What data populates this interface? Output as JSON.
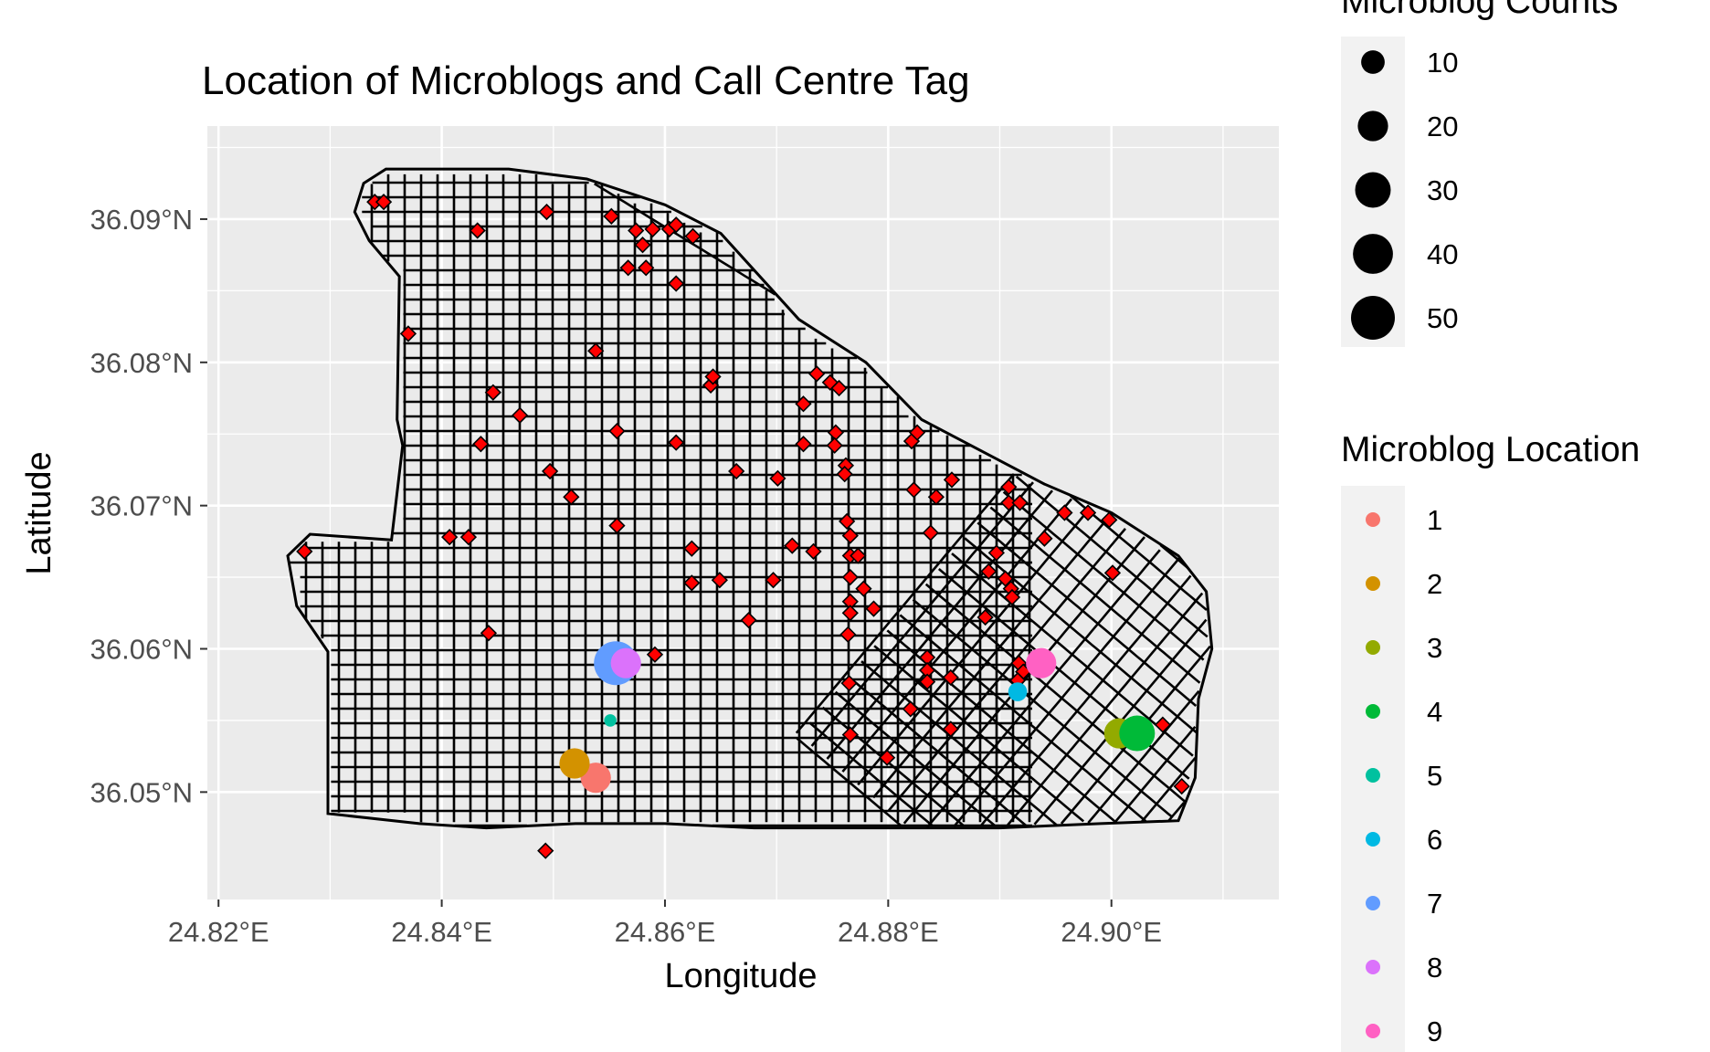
{
  "chart_data": {
    "type": "scatter",
    "title": "Location of Microblogs and Call Centre Tag",
    "xlabel": "Longitude",
    "ylabel": "Latitude",
    "xlim": [
      24.819,
      24.915
    ],
    "ylim": [
      36.0425,
      36.0965
    ],
    "x_ticks": [
      {
        "value": 24.82,
        "label": "24.82°E"
      },
      {
        "value": 24.84,
        "label": "24.84°E"
      },
      {
        "value": 24.86,
        "label": "24.86°E"
      },
      {
        "value": 24.88,
        "label": "24.88°E"
      },
      {
        "value": 24.9,
        "label": "24.90°E"
      }
    ],
    "y_ticks": [
      {
        "value": 36.05,
        "label": "36.05°N"
      },
      {
        "value": 36.06,
        "label": "36.06°N"
      },
      {
        "value": 36.07,
        "label": "36.07°N"
      },
      {
        "value": 36.08,
        "label": "36.08°N"
      },
      {
        "value": 36.09,
        "label": "36.09°N"
      }
    ],
    "grid": true,
    "background": "#ebebeb",
    "road_color": "#000000",
    "call_centre_marker": {
      "shape": "diamond",
      "fill": "#ff0000",
      "stroke": "#000000"
    },
    "call_centre_points": [
      [
        24.834,
        36.0912
      ],
      [
        24.8348,
        36.0912
      ],
      [
        24.8432,
        36.0892
      ],
      [
        24.8494,
        36.0905
      ],
      [
        24.8552,
        36.0902
      ],
      [
        24.8574,
        36.0892
      ],
      [
        24.858,
        36.0882
      ],
      [
        24.8589,
        36.0893
      ],
      [
        24.8604,
        36.0893
      ],
      [
        24.861,
        36.0896
      ],
      [
        24.8625,
        36.0888
      ],
      [
        24.8567,
        36.0866
      ],
      [
        24.8583,
        36.0866
      ],
      [
        24.861,
        36.0855
      ],
      [
        24.837,
        36.082
      ],
      [
        24.8538,
        36.0808
      ],
      [
        24.8641,
        36.0784
      ],
      [
        24.8643,
        36.079
      ],
      [
        24.8736,
        36.0792
      ],
      [
        24.8748,
        36.0786
      ],
      [
        24.8756,
        36.0782
      ],
      [
        24.8724,
        36.0771
      ],
      [
        24.8446,
        36.0779
      ],
      [
        24.847,
        36.0763
      ],
      [
        24.8557,
        36.0752
      ],
      [
        24.861,
        36.0744
      ],
      [
        24.8435,
        36.0743
      ],
      [
        24.8724,
        36.0743
      ],
      [
        24.8753,
        36.0751
      ],
      [
        24.8752,
        36.0742
      ],
      [
        24.8821,
        36.0745
      ],
      [
        24.8826,
        36.0751
      ],
      [
        24.8664,
        36.0724
      ],
      [
        24.8701,
        36.0719
      ],
      [
        24.8497,
        36.0724
      ],
      [
        24.8762,
        36.0728
      ],
      [
        24.8761,
        36.0722
      ],
      [
        24.8516,
        36.0706
      ],
      [
        24.8823,
        36.0711
      ],
      [
        24.8843,
        36.0706
      ],
      [
        24.8857,
        36.0718
      ],
      [
        24.8908,
        36.0713
      ],
      [
        24.8908,
        36.0702
      ],
      [
        24.8918,
        36.0702
      ],
      [
        24.8958,
        36.0695
      ],
      [
        24.8979,
        36.0695
      ],
      [
        24.8998,
        36.069
      ],
      [
        24.8407,
        36.0678
      ],
      [
        24.8424,
        36.0678
      ],
      [
        24.8277,
        36.0668
      ],
      [
        24.8557,
        36.0686
      ],
      [
        24.8763,
        36.0689
      ],
      [
        24.8766,
        36.0679
      ],
      [
        24.8838,
        36.0681
      ],
      [
        24.894,
        36.0677
      ],
      [
        24.8624,
        36.067
      ],
      [
        24.8714,
        36.0672
      ],
      [
        24.8733,
        36.0668
      ],
      [
        24.8766,
        36.0665
      ],
      [
        24.8773,
        36.0665
      ],
      [
        24.8897,
        36.0667
      ],
      [
        24.9001,
        36.0653
      ],
      [
        24.889,
        36.0654
      ],
      [
        24.8905,
        36.0649
      ],
      [
        24.891,
        36.0642
      ],
      [
        24.8911,
        36.0636
      ],
      [
        24.8624,
        36.0646
      ],
      [
        24.8649,
        36.0648
      ],
      [
        24.8697,
        36.0648
      ],
      [
        24.8766,
        36.065
      ],
      [
        24.8778,
        36.0642
      ],
      [
        24.8766,
        36.0633
      ],
      [
        24.8787,
        36.0628
      ],
      [
        24.8766,
        36.0625
      ],
      [
        24.8675,
        36.062
      ],
      [
        24.8887,
        36.0622
      ],
      [
        24.8764,
        36.061
      ],
      [
        24.8442,
        36.0611
      ],
      [
        24.8591,
        36.0596
      ],
      [
        24.8835,
        36.0594
      ],
      [
        24.8917,
        36.059
      ],
      [
        24.8921,
        36.0584
      ],
      [
        24.8916,
        36.0578
      ],
      [
        24.8835,
        36.0585
      ],
      [
        24.8856,
        36.058
      ],
      [
        24.8835,
        36.0577
      ],
      [
        24.8765,
        36.0576
      ],
      [
        24.882,
        36.0558
      ],
      [
        24.8856,
        36.0544
      ],
      [
        24.8766,
        36.054
      ],
      [
        24.8799,
        36.0524
      ],
      [
        24.9002,
        36.0545
      ],
      [
        24.9046,
        36.0547
      ],
      [
        24.9063,
        36.0504
      ],
      [
        24.8493,
        36.0459
      ]
    ],
    "microblog_points": [
      {
        "location": "1",
        "x": 24.8538,
        "y": 36.051,
        "count": 20
      },
      {
        "location": "2",
        "x": 24.8519,
        "y": 36.052,
        "count": 20
      },
      {
        "location": "3",
        "x": 24.9007,
        "y": 36.0541,
        "count": 20
      },
      {
        "location": "4",
        "x": 24.9023,
        "y": 36.0541,
        "count": 30
      },
      {
        "location": "5",
        "x": 24.8551,
        "y": 36.055,
        "count": 1
      },
      {
        "location": "6",
        "x": 24.8916,
        "y": 36.057,
        "count": 5
      },
      {
        "location": "7",
        "x": 24.8556,
        "y": 36.059,
        "count": 50
      },
      {
        "location": "8",
        "x": 24.8565,
        "y": 36.059,
        "count": 20
      },
      {
        "location": "9",
        "x": 24.8937,
        "y": 36.059,
        "count": 20
      }
    ],
    "size_legend": {
      "title": "Microblog Counts",
      "entries": [
        {
          "label": "10",
          "count": 10
        },
        {
          "label": "20",
          "count": 20
        },
        {
          "label": "30",
          "count": 30
        },
        {
          "label": "40",
          "count": 40
        },
        {
          "label": "50",
          "count": 50
        }
      ]
    },
    "color_legend": {
      "title": "Microblog Location",
      "entries": [
        {
          "label": "1",
          "color": "#F8766D"
        },
        {
          "label": "2",
          "color": "#D39200"
        },
        {
          "label": "3",
          "color": "#93AA00"
        },
        {
          "label": "4",
          "color": "#00BA38"
        },
        {
          "label": "5",
          "color": "#00C19F"
        },
        {
          "label": "6",
          "color": "#00B9E3"
        },
        {
          "label": "7",
          "color": "#619CFF"
        },
        {
          "label": "8",
          "color": "#DB72FB"
        },
        {
          "label": "9",
          "color": "#FF61C3"
        }
      ]
    },
    "legend_position": "right"
  }
}
